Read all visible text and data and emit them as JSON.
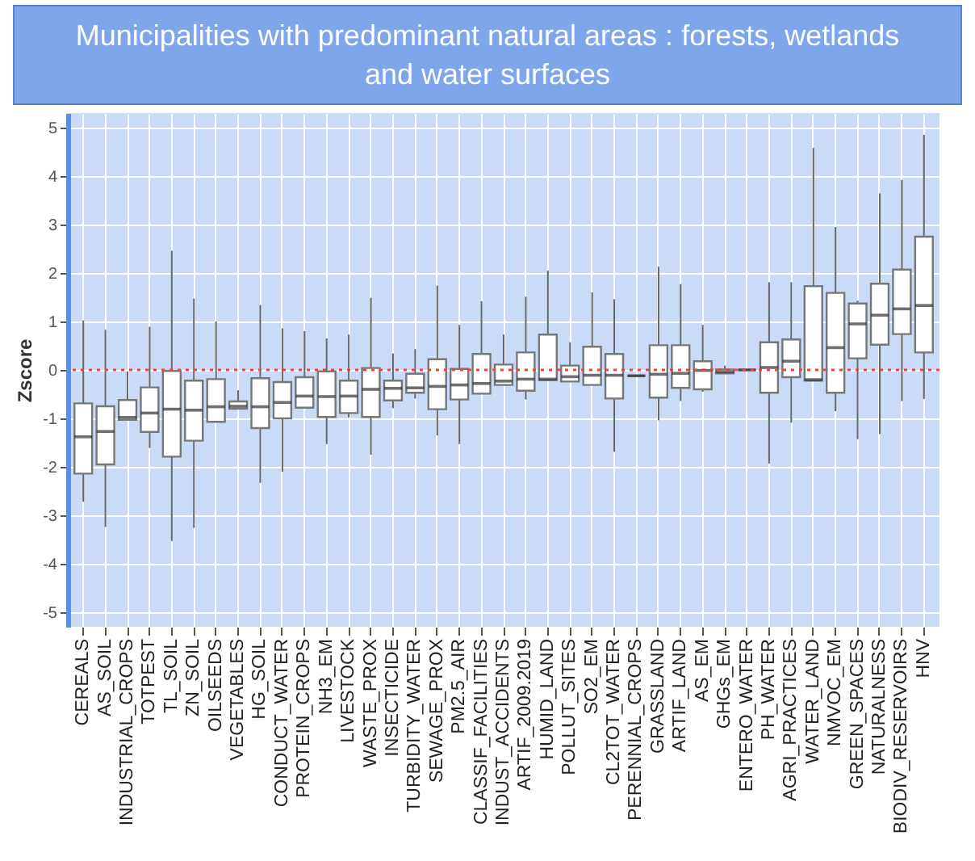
{
  "chart_data": {
    "type": "box",
    "title": "Municipalities with predominant natural areas : forests, wetlands and water surfaces",
    "ylabel": "Zscore",
    "categories": [
      "CEREALS",
      "AS_SOIL",
      "INDUSTRIAL_CROPS",
      "TOTPEST",
      "TL_SOIL",
      "ZN_SOIL",
      "OILSEEDS",
      "VEGETABLES",
      "HG_SOIL",
      "CONDUCT_WATER",
      "PROTEIN_CROPS",
      "NH3_EM",
      "LIVESTOCK",
      "WASTE_PROX",
      "INSECTICIDE",
      "TURBIDITY_WATER",
      "SEWAGE_PROX",
      "PM2.5_AIR",
      "CLASSIF_FACILITIES",
      "INDUST_ACCIDENTS",
      "ARTIF_2009.2019",
      "HUMID_LAND",
      "POLLUT_SITES",
      "SO2_EM",
      "CL2TOT_WATER",
      "PERENNIAL_CROPS",
      "GRASSLAND",
      "ARTIF_LAND",
      "AS_EM",
      "GHGs_EM",
      "ENTERO_WATER",
      "PH_WATER",
      "AGRI_PRACTICES",
      "WATER_LAND",
      "NMVOC_EM",
      "GREEN_SPACES",
      "NATURALNESS",
      "BIODIV_RESERVOIRS",
      "HNV"
    ],
    "boxes": [
      {
        "low": -2.72,
        "q1": -2.14,
        "median": -1.38,
        "q3": -0.69,
        "high": 1.02
      },
      {
        "low": -3.24,
        "q1": -1.95,
        "median": -1.27,
        "q3": -0.75,
        "high": 0.83
      },
      {
        "low": -1.05,
        "q1": -1.03,
        "median": -0.98,
        "q3": -0.62,
        "high": -0.03
      },
      {
        "low": -1.61,
        "q1": -1.28,
        "median": -0.89,
        "q3": -0.36,
        "high": 0.89
      },
      {
        "low": -3.53,
        "q1": -1.79,
        "median": -0.81,
        "q3": -0.02,
        "high": 2.46
      },
      {
        "low": -3.26,
        "q1": -1.46,
        "median": -0.83,
        "q3": -0.22,
        "high": 1.47
      },
      {
        "low": -1.07,
        "q1": -1.07,
        "median": -0.76,
        "q3": -0.19,
        "high": 1.0
      },
      {
        "low": -0.8,
        "q1": -0.8,
        "median": -0.75,
        "q3": -0.65,
        "high": -0.42
      },
      {
        "low": -2.33,
        "q1": -1.2,
        "median": -0.76,
        "q3": -0.17,
        "high": 1.34
      },
      {
        "low": -2.1,
        "q1": -1.0,
        "median": -0.67,
        "q3": -0.25,
        "high": 0.86
      },
      {
        "low": -0.78,
        "q1": -0.78,
        "median": -0.54,
        "q3": -0.15,
        "high": 0.8
      },
      {
        "low": -1.53,
        "q1": -0.97,
        "median": -0.55,
        "q3": -0.03,
        "high": 0.65
      },
      {
        "low": -0.98,
        "q1": -0.89,
        "median": -0.54,
        "q3": -0.22,
        "high": 0.73
      },
      {
        "low": -1.75,
        "q1": -0.97,
        "median": -0.4,
        "q3": 0.04,
        "high": 1.49
      },
      {
        "low": -0.79,
        "q1": -0.63,
        "median": -0.38,
        "q3": -0.22,
        "high": 0.34
      },
      {
        "low": -0.59,
        "q1": -0.47,
        "median": -0.37,
        "q3": -0.08,
        "high": 0.43
      },
      {
        "low": -1.35,
        "q1": -0.81,
        "median": -0.34,
        "q3": 0.22,
        "high": 1.74
      },
      {
        "low": -1.53,
        "q1": -0.61,
        "median": -0.31,
        "q3": 0.02,
        "high": 0.93
      },
      {
        "low": -0.49,
        "q1": -0.49,
        "median": -0.28,
        "q3": 0.33,
        "high": 1.42
      },
      {
        "low": -0.31,
        "q1": -0.31,
        "median": -0.23,
        "q3": 0.11,
        "high": 0.73
      },
      {
        "low": -0.61,
        "q1": -0.43,
        "median": -0.19,
        "q3": 0.36,
        "high": 1.51
      },
      {
        "low": -0.21,
        "q1": -0.21,
        "median": -0.19,
        "q3": 0.73,
        "high": 2.05
      },
      {
        "low": -0.24,
        "q1": -0.24,
        "median": -0.14,
        "q3": 0.09,
        "high": 0.57
      },
      {
        "low": -0.31,
        "q1": -0.31,
        "median": -0.11,
        "q3": 0.48,
        "high": 1.6
      },
      {
        "low": -1.69,
        "q1": -0.59,
        "median": -0.11,
        "q3": 0.33,
        "high": 1.46
      },
      {
        "low": -0.12,
        "q1": -0.12,
        "median": -0.12,
        "q3": -0.12,
        "high": -0.12
      },
      {
        "low": -1.04,
        "q1": -0.57,
        "median": -0.09,
        "q3": 0.51,
        "high": 2.13
      },
      {
        "low": -0.64,
        "q1": -0.37,
        "median": -0.07,
        "q3": 0.51,
        "high": 1.77
      },
      {
        "low": -0.45,
        "q1": -0.4,
        "median": -0.01,
        "q3": 0.18,
        "high": 0.93
      },
      {
        "low": -0.07,
        "q1": -0.07,
        "median": -0.04,
        "q3": 0.01,
        "high": 0.09
      },
      {
        "low": 0,
        "q1": 0,
        "median": 0,
        "q3": 0,
        "high": 0
      },
      {
        "low": -1.93,
        "q1": -0.47,
        "median": 0.05,
        "q3": 0.57,
        "high": 1.81
      },
      {
        "low": -1.09,
        "q1": -0.15,
        "median": 0.18,
        "q3": 0.63,
        "high": 1.81
      },
      {
        "low": -0.22,
        "q1": -0.22,
        "median": -0.2,
        "q3": 1.73,
        "high": 4.58
      },
      {
        "low": -0.85,
        "q1": -0.47,
        "median": 0.46,
        "q3": 1.59,
        "high": 2.95
      },
      {
        "low": -1.43,
        "q1": 0.24,
        "median": 0.95,
        "q3": 1.37,
        "high": 1.43
      },
      {
        "low": -1.32,
        "q1": 0.52,
        "median": 1.13,
        "q3": 1.78,
        "high": 3.64
      },
      {
        "low": -0.64,
        "q1": 0.74,
        "median": 1.26,
        "q3": 2.07,
        "high": 3.92
      },
      {
        "low": -0.6,
        "q1": 0.36,
        "median": 1.33,
        "q3": 2.75,
        "high": 4.85
      }
    ],
    "ylim": [
      -5.3,
      5.3
    ],
    "yticks": [
      -5,
      -4,
      -3,
      -2,
      -1,
      0,
      1,
      2,
      3,
      4,
      5
    ],
    "grid": true,
    "ref_lines": [
      {
        "axis": "y",
        "value": 0,
        "color": "#ff3b3b",
        "line_style": "dotted"
      }
    ]
  }
}
